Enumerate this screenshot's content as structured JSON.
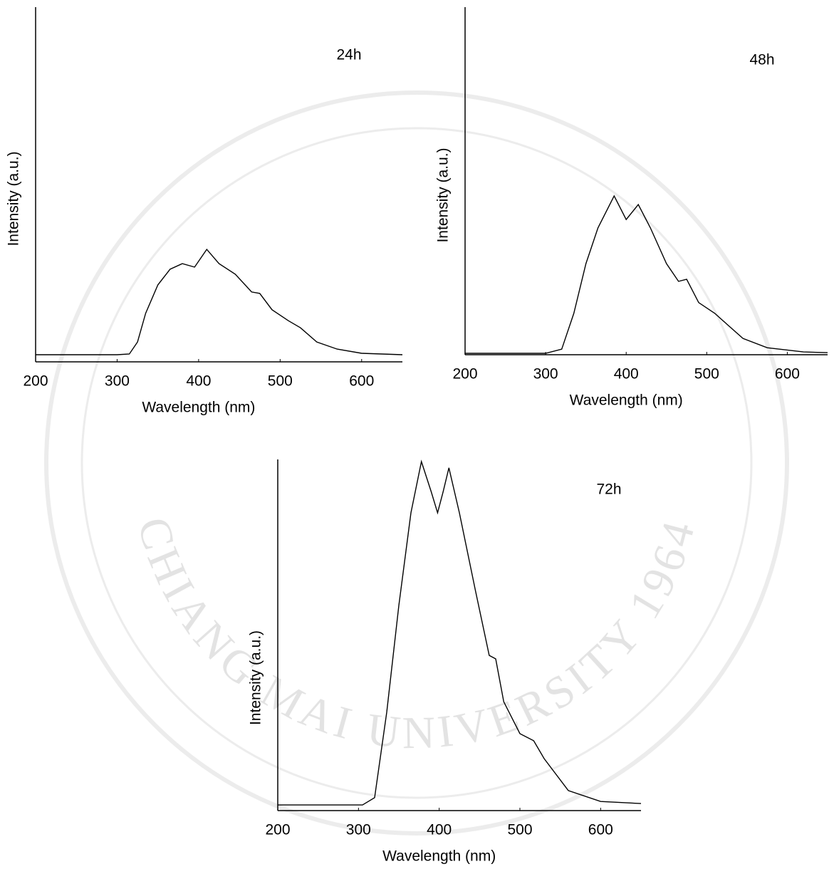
{
  "watermark": "CHIANG MAI UNIVERSITY 1964",
  "chart_data": [
    {
      "type": "line",
      "annotation": "24h",
      "x_label": "Wavelength (nm)",
      "y_label": "Intensity (a.u.)",
      "color": "#000000",
      "xlim": [
        200,
        650
      ],
      "xticks": [
        200,
        300,
        400,
        500,
        600
      ],
      "ylim": [
        0,
        100
      ],
      "x": [
        200,
        300,
        315,
        325,
        335,
        350,
        365,
        380,
        395,
        410,
        425,
        445,
        465,
        475,
        490,
        510,
        525,
        545,
        570,
        600,
        650
      ],
      "values": [
        2,
        2,
        2.2,
        5.6,
        13.7,
        21.7,
        26.1,
        27.7,
        26.7,
        31.7,
        27.7,
        24.7,
        19.7,
        19.3,
        14.7,
        11.6,
        9.6,
        5.6,
        3.6,
        2.4,
        2
      ]
    },
    {
      "type": "line",
      "annotation": "48h",
      "x_label": "Wavelength (nm)",
      "y_label": "Intensity (a.u.)",
      "color": "#000000",
      "xlim": [
        200,
        650
      ],
      "xticks": [
        200,
        300,
        400,
        500,
        600
      ],
      "ylim": [
        0,
        100
      ],
      "x": [
        200,
        300,
        320,
        335,
        350,
        365,
        385,
        400,
        415,
        430,
        450,
        465,
        475,
        490,
        510,
        525,
        545,
        575,
        620,
        650
      ],
      "values": [
        0.4,
        0.4,
        1.6,
        11.9,
        26.2,
        36.5,
        45.7,
        38.9,
        43.2,
        36.5,
        26.2,
        21.1,
        21.7,
        15,
        11.9,
        8.8,
        4.7,
        2,
        0.8,
        0.6
      ]
    },
    {
      "type": "line",
      "annotation": "72h",
      "x_label": "Wavelength (nm)",
      "y_label": "Intensity (a.u.)",
      "color": "#000000",
      "xlim": [
        200,
        650
      ],
      "xticks": [
        200,
        300,
        400,
        500,
        600
      ],
      "ylim": [
        0,
        100
      ],
      "x": [
        200,
        305,
        320,
        335,
        350,
        365,
        378,
        390,
        398,
        405,
        412,
        425,
        445,
        462,
        470,
        480,
        500,
        517,
        530,
        560,
        600,
        650
      ],
      "values": [
        1.6,
        1.6,
        3.7,
        28,
        58.4,
        84.8,
        99.4,
        90.9,
        84.8,
        90.9,
        97.6,
        84.8,
        62.5,
        44.2,
        43.2,
        31,
        21.9,
        19.9,
        14.8,
        5.7,
        2.6,
        2
      ]
    }
  ]
}
